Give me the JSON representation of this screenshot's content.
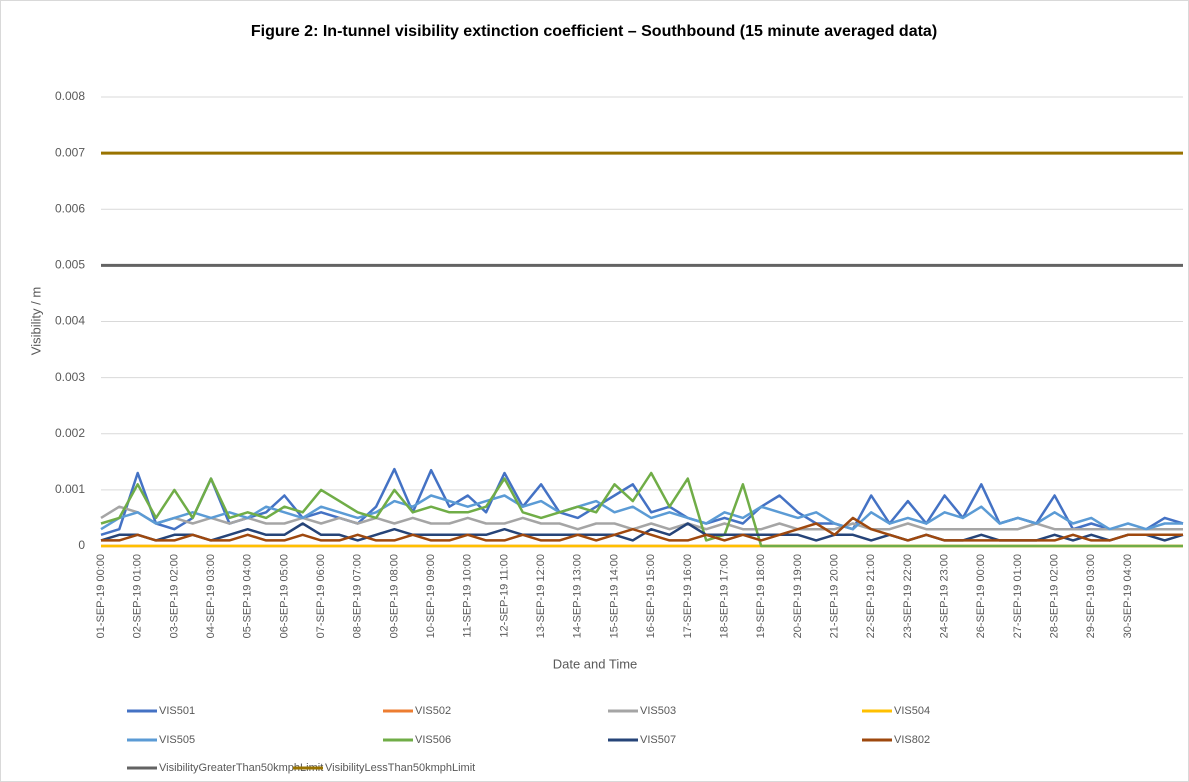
{
  "chart_data": {
    "type": "line",
    "title": "Figure 2: In-tunnel visibility extinction coefficient – Southbound (15 minute averaged data)",
    "y_label": "Visibility / m",
    "x_label": "Date and Time",
    "categories": [
      "01-SEP-19 00:00",
      null,
      "02-SEP-19 01:00",
      null,
      "03-SEP-19 02:00",
      null,
      "04-SEP-19 03:00",
      null,
      "05-SEP-19 04:00",
      null,
      "06-SEP-19 05:00",
      null,
      "07-SEP-19 06:00",
      null,
      "08-SEP-19 07:00",
      null,
      "09-SEP-19 08:00",
      null,
      "10-SEP-19 09:00",
      null,
      "11-SEP-19 10:00",
      null,
      "12-SEP-19 11:00",
      null,
      "13-SEP-19 12:00",
      null,
      "14-SEP-19 13:00",
      null,
      "15-SEP-19 14:00",
      null,
      "16-SEP-19 15:00",
      null,
      "17-SEP-19 16:00",
      null,
      "18-SEP-19 17:00",
      null,
      "19-SEP-19 18:00",
      null,
      "20-SEP-19 19:00",
      null,
      "21-SEP-19 20:00",
      null,
      "22-SEP-19 21:00",
      null,
      "23-SEP-19 22:00",
      null,
      "24-SEP-19 23:00",
      null,
      "26-SEP-19 00:00",
      null,
      "27-SEP-19 01:00",
      null,
      "28-SEP-19 02:00",
      null,
      "29-SEP-19 03:00",
      null,
      "30-SEP-19 04:00",
      null,
      null,
      null
    ],
    "ylim": [
      0,
      0.008
    ],
    "yticks": [
      0,
      0.001,
      0.002,
      0.003,
      0.004,
      0.005,
      0.006,
      0.007,
      0.008
    ],
    "grid": true,
    "series": [
      {
        "name": "VIS501",
        "color": "#4472c4",
        "values": [
          0.0002,
          0.0003,
          0.0013,
          0.0004,
          0.0003,
          0.0005,
          0.0012,
          0.0004,
          0.0005,
          0.0006,
          0.0009,
          0.0005,
          0.0006,
          0.0005,
          0.0004,
          0.0007,
          0.00137,
          0.0006,
          0.00135,
          0.0007,
          0.0009,
          0.0006,
          0.0013,
          0.0007,
          0.0011,
          0.0006,
          0.0005,
          0.0007,
          0.0009,
          0.0011,
          0.0006,
          0.0007,
          0.0005,
          0.0004,
          0.0005,
          0.0004,
          0.0007,
          0.0009,
          0.0006,
          0.0004,
          0.0004,
          0.0003,
          0.0009,
          0.0004,
          0.0008,
          0.0004,
          0.0009,
          0.0005,
          0.0011,
          0.0004,
          0.0005,
          0.0004,
          0.0009,
          0.0003,
          0.0004,
          0.0003,
          0.0003,
          0.0003,
          0.0005,
          0.0004
        ]
      },
      {
        "name": "VIS502",
        "color": "#ed7d31",
        "values": [
          0,
          0,
          0,
          0,
          0,
          0,
          0,
          0,
          0,
          0,
          0,
          0,
          0,
          0,
          0,
          0,
          0,
          0,
          0,
          0,
          0,
          0,
          0,
          0,
          0,
          0,
          0,
          0,
          0,
          0,
          0,
          0,
          0,
          0,
          0,
          0,
          0,
          0,
          0,
          0,
          0,
          0,
          0,
          0,
          0,
          0,
          0,
          0,
          0,
          0,
          0,
          0,
          0,
          0,
          0,
          0,
          0,
          0,
          0,
          0
        ]
      },
      {
        "name": "VIS503",
        "color": "#a5a5a5",
        "values": [
          0.0005,
          0.0007,
          0.0006,
          0.0004,
          0.0005,
          0.0004,
          0.0005,
          0.0004,
          0.0005,
          0.0004,
          0.0004,
          0.0005,
          0.0004,
          0.0005,
          0.0004,
          0.0005,
          0.0004,
          0.0005,
          0.0004,
          0.0004,
          0.0005,
          0.0004,
          0.0004,
          0.0005,
          0.0004,
          0.0004,
          0.0003,
          0.0004,
          0.0004,
          0.0003,
          0.0004,
          0.0003,
          0.0004,
          0.0003,
          0.0004,
          0.0003,
          0.0003,
          0.0004,
          0.0003,
          0.0003,
          0.0003,
          0.0004,
          0.0003,
          0.0003,
          0.0004,
          0.0003,
          0.0003,
          0.0003,
          0.0003,
          0.0003,
          0.0003,
          0.0004,
          0.0003,
          0.0003,
          0.0003,
          0.0003,
          0.0003,
          0.0003,
          0.0003,
          0.0003
        ]
      },
      {
        "name": "VIS504",
        "color": "#ffc000",
        "values": [
          0,
          0,
          0,
          0,
          0,
          0,
          0,
          0,
          0,
          0,
          0,
          0,
          0,
          0,
          0,
          0,
          0,
          0,
          0,
          0,
          0,
          0,
          0,
          0,
          0,
          0,
          0,
          0,
          0,
          0,
          0,
          0,
          0,
          0,
          0,
          0,
          0,
          0,
          0,
          0,
          0,
          0,
          0,
          0,
          0,
          0,
          0,
          0,
          0,
          0,
          0,
          0,
          0,
          0,
          0,
          0,
          0,
          0,
          0,
          0
        ]
      },
      {
        "name": "VIS505",
        "color": "#5b9bd5",
        "values": [
          0.0003,
          0.0005,
          0.0006,
          0.0004,
          0.0005,
          0.0006,
          0.0005,
          0.0006,
          0.0005,
          0.0007,
          0.0006,
          0.0005,
          0.0007,
          0.0006,
          0.0005,
          0.0006,
          0.0008,
          0.0007,
          0.0009,
          0.0008,
          0.0007,
          0.0008,
          0.0009,
          0.0007,
          0.0008,
          0.0006,
          0.0007,
          0.0008,
          0.0006,
          0.0007,
          0.0005,
          0.0006,
          0.0005,
          0.0004,
          0.0006,
          0.0005,
          0.0007,
          0.0006,
          0.0005,
          0.0006,
          0.0004,
          0.0003,
          0.0006,
          0.0004,
          0.0005,
          0.0004,
          0.0006,
          0.0005,
          0.0007,
          0.0004,
          0.0005,
          0.0004,
          0.0006,
          0.0004,
          0.0005,
          0.0003,
          0.0004,
          0.0003,
          0.0004,
          0.0004
        ]
      },
      {
        "name": "VIS506",
        "color": "#70ad47",
        "values": [
          0.0004,
          0.0005,
          0.0011,
          0.0005,
          0.001,
          0.0005,
          0.0012,
          0.0005,
          0.0006,
          0.0005,
          0.0007,
          0.0006,
          0.001,
          0.0008,
          0.0006,
          0.0005,
          0.001,
          0.0006,
          0.0007,
          0.0006,
          0.0006,
          0.0007,
          0.0012,
          0.0006,
          0.0005,
          0.0006,
          0.0007,
          0.0006,
          0.0011,
          0.0008,
          0.0013,
          0.0007,
          0.0012,
          0.0001,
          0.0002,
          0.0011,
          0,
          0,
          0,
          0,
          0,
          0,
          0,
          0,
          0,
          0,
          0,
          0,
          0,
          0,
          0,
          0,
          0,
          0,
          0,
          0,
          0,
          0,
          0,
          0
        ]
      },
      {
        "name": "VIS507",
        "color": "#264478",
        "values": [
          0.0001,
          0.0002,
          0.0002,
          0.0001,
          0.0002,
          0.0002,
          0.0001,
          0.0002,
          0.0003,
          0.0002,
          0.0002,
          0.0004,
          0.0002,
          0.0002,
          0.0001,
          0.0002,
          0.0003,
          0.0002,
          0.0002,
          0.0002,
          0.0002,
          0.0002,
          0.0003,
          0.0002,
          0.0002,
          0.0002,
          0.0002,
          0.0002,
          0.0002,
          0.0001,
          0.0003,
          0.0002,
          0.0004,
          0.0002,
          0.0002,
          0.0002,
          0.0002,
          0.0002,
          0.0002,
          0.0001,
          0.0002,
          0.0002,
          0.0001,
          0.0002,
          0.0001,
          0.0002,
          0.0001,
          0.0001,
          0.0002,
          0.0001,
          0.0001,
          0.0001,
          0.0002,
          0.0001,
          0.0002,
          0.0001,
          0.0002,
          0.0002,
          0.0001,
          0.0002
        ]
      },
      {
        "name": "VIS802",
        "color": "#9e480e",
        "values": [
          0.0001,
          0.0001,
          0.0002,
          0.0001,
          0.0001,
          0.0002,
          0.0001,
          0.0001,
          0.0002,
          0.0001,
          0.0001,
          0.0002,
          0.0001,
          0.0001,
          0.0002,
          0.0001,
          0.0001,
          0.0002,
          0.0001,
          0.0001,
          0.0002,
          0.0001,
          0.0001,
          0.0002,
          0.0001,
          0.0001,
          0.0002,
          0.0001,
          0.0002,
          0.0003,
          0.0002,
          0.0001,
          0.0001,
          0.0002,
          0.0001,
          0.0002,
          0.0001,
          0.0002,
          0.0003,
          0.0004,
          0.0002,
          0.0005,
          0.0003,
          0.0002,
          0.0001,
          0.0002,
          0.0001,
          0.0001,
          0.0001,
          0.0001,
          0.0001,
          0.0001,
          0.0001,
          0.0002,
          0.0001,
          0.0001,
          0.0002,
          0.0002,
          0.0002,
          0.0002
        ]
      },
      {
        "name": "VisibilityGreaterThan50kmphLimit",
        "color": "#636363",
        "values": [
          0.005,
          0.005,
          0.005,
          0.005,
          0.005,
          0.005,
          0.005,
          0.005,
          0.005,
          0.005,
          0.005,
          0.005,
          0.005,
          0.005,
          0.005,
          0.005,
          0.005,
          0.005,
          0.005,
          0.005,
          0.005,
          0.005,
          0.005,
          0.005,
          0.005,
          0.005,
          0.005,
          0.005,
          0.005,
          0.005,
          0.005,
          0.005,
          0.005,
          0.005,
          0.005,
          0.005,
          0.005,
          0.005,
          0.005,
          0.005,
          0.005,
          0.005,
          0.005,
          0.005,
          0.005,
          0.005,
          0.005,
          0.005,
          0.005,
          0.005,
          0.005,
          0.005,
          0.005,
          0.005,
          0.005,
          0.005,
          0.005,
          0.005,
          0.005,
          0.005
        ]
      },
      {
        "name": "VisibilityLessThan50kmphLimit",
        "color": "#997300",
        "values": [
          0.007,
          0.007,
          0.007,
          0.007,
          0.007,
          0.007,
          0.007,
          0.007,
          0.007,
          0.007,
          0.007,
          0.007,
          0.007,
          0.007,
          0.007,
          0.007,
          0.007,
          0.007,
          0.007,
          0.007,
          0.007,
          0.007,
          0.007,
          0.007,
          0.007,
          0.007,
          0.007,
          0.007,
          0.007,
          0.007,
          0.007,
          0.007,
          0.007,
          0.007,
          0.007,
          0.007,
          0.007,
          0.007,
          0.007,
          0.007,
          0.007,
          0.007,
          0.007,
          0.007,
          0.007,
          0.007,
          0.007,
          0.007,
          0.007,
          0.007,
          0.007,
          0.007,
          0.007,
          0.007,
          0.007,
          0.007,
          0.007,
          0.007,
          0.007,
          0.007
        ]
      }
    ]
  }
}
